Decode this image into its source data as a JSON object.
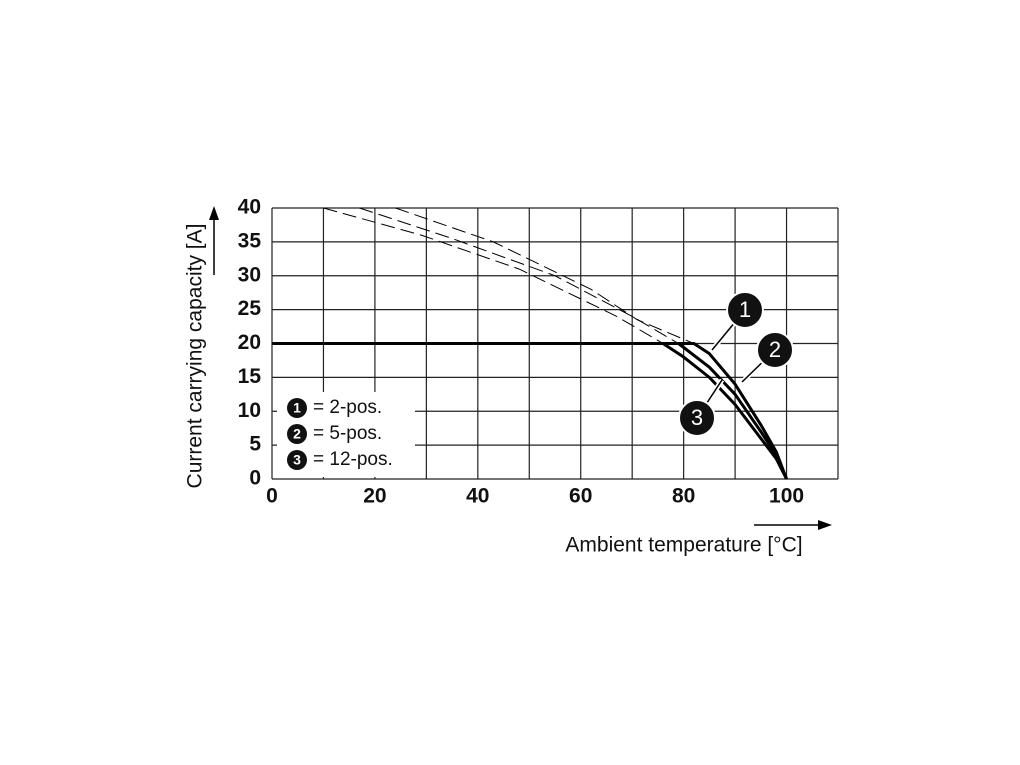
{
  "chart_data": {
    "type": "line",
    "y_label": "Current carrying capacity [A]",
    "x_label": "Ambient temperature [°C]",
    "xlim": [
      0,
      110
    ],
    "xticks": [
      0,
      20,
      40,
      60,
      80,
      100
    ],
    "ylim": [
      0,
      40
    ],
    "yticks": [
      0,
      5,
      10,
      15,
      20,
      25,
      30,
      35,
      40
    ],
    "xgrid": [
      0,
      10,
      20,
      30,
      40,
      50,
      60,
      70,
      80,
      90,
      100,
      110
    ],
    "grid": true,
    "color": "#000000",
    "series": [
      {
        "marker": "1",
        "name": "= 2-pos.",
        "style": "solid",
        "x": [
          0,
          82,
          85,
          90,
          95,
          98,
          100
        ],
        "values": [
          20,
          20,
          18.5,
          14,
          8,
          4,
          0
        ]
      },
      {
        "marker": "2",
        "name": "= 5-pos.",
        "style": "solid",
        "x": [
          0,
          79,
          85,
          90,
          95,
          98,
          100
        ],
        "values": [
          20,
          20,
          16.5,
          12.5,
          7,
          3.5,
          0
        ]
      },
      {
        "marker": "3",
        "name": "= 12-pos.",
        "style": "solid",
        "x": [
          0,
          76,
          80,
          85,
          90,
          95,
          98,
          100
        ],
        "values": [
          20,
          20,
          18,
          15,
          11,
          6,
          3,
          0
        ]
      },
      {
        "style": "dashed",
        "x": [
          24,
          43,
          62,
          71,
          82
        ],
        "values": [
          40,
          35,
          28,
          23.5,
          20
        ]
      },
      {
        "style": "dashed",
        "x": [
          17,
          35,
          55,
          70,
          79
        ],
        "values": [
          40,
          35.5,
          30,
          24,
          20
        ]
      },
      {
        "style": "dashed",
        "x": [
          10,
          29,
          48,
          67,
          76
        ],
        "values": [
          40,
          36,
          31,
          24,
          20
        ]
      }
    ]
  }
}
